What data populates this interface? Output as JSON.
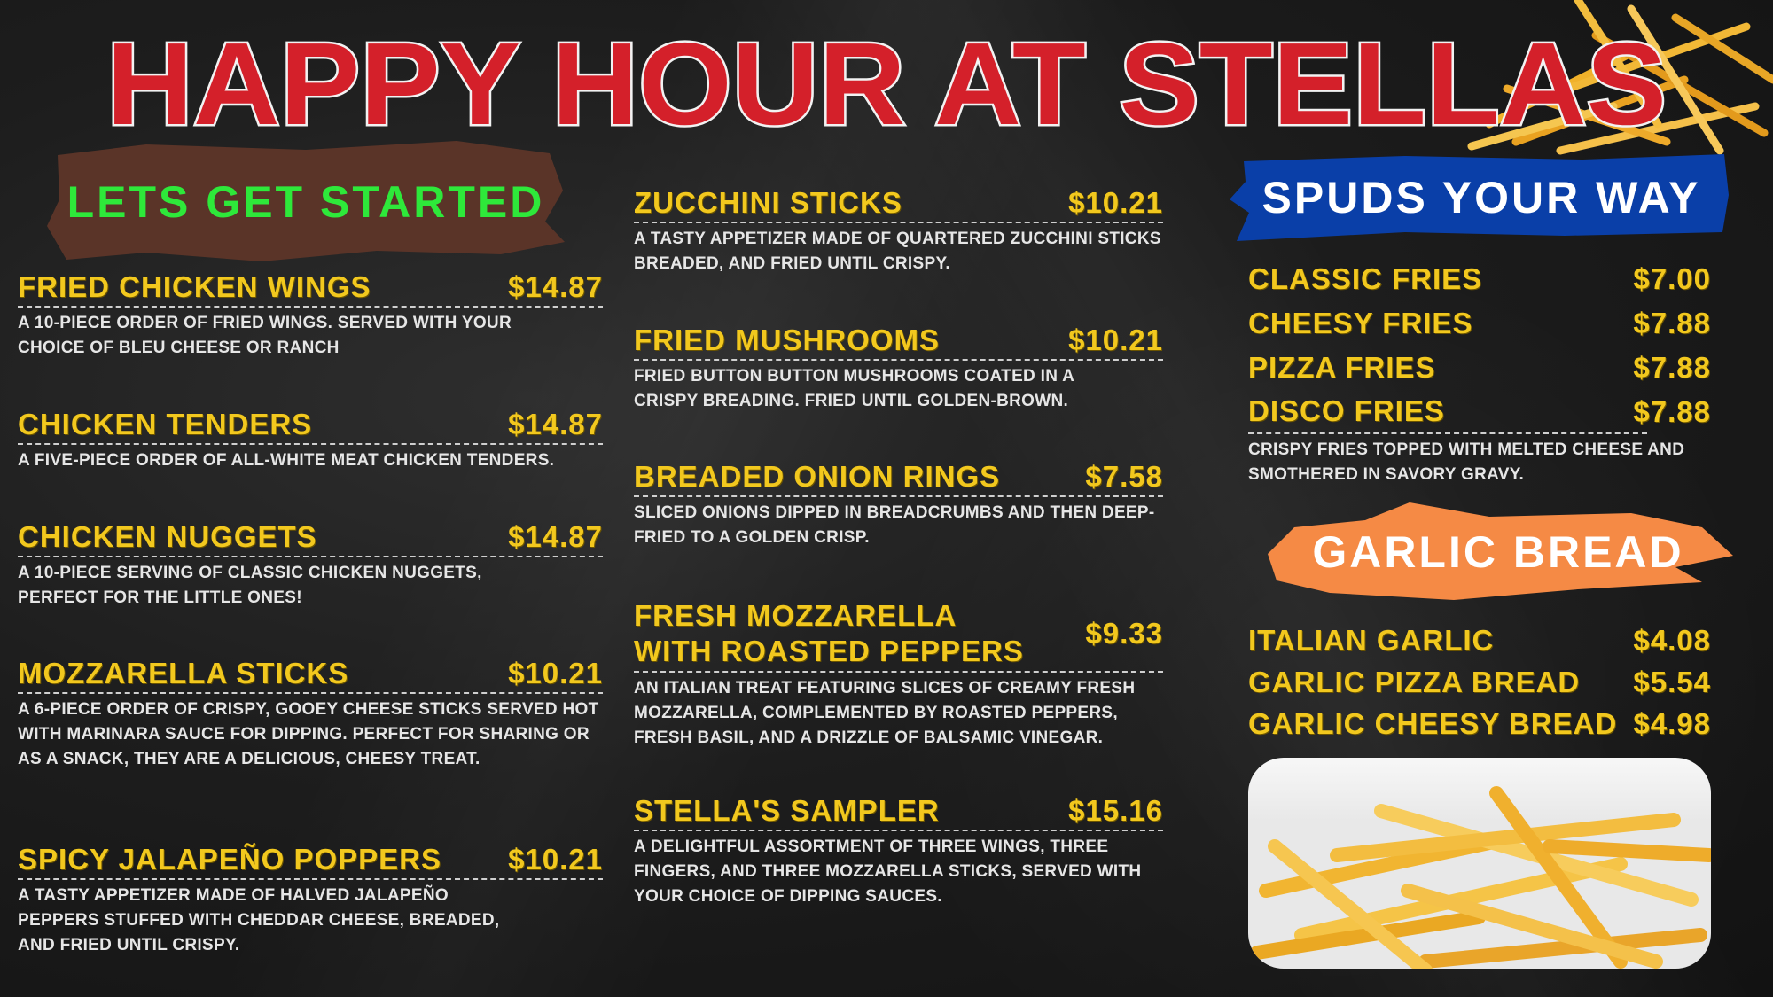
{
  "title": "HAPPY HOUR AT STELLAS",
  "colors": {
    "title": "#d4202a",
    "item": "#f2c81e",
    "desc": "#e6e6e6",
    "starters_banner": "#5a3428",
    "starters_text": "#2ee83a",
    "spuds_banner": "#0a3fa8",
    "garlic_banner": "#f58a45"
  },
  "starters": {
    "heading": "LETS GET STARTED",
    "items": [
      {
        "name": "FRIED CHICKEN WINGS",
        "price": "$14.87",
        "desc": "A 10-PIECE ORDER OF FRIED WINGS. SERVED WITH YOUR CHOICE OF BLEU CHEESE OR RANCH"
      },
      {
        "name": "CHICKEN TENDERS",
        "price": "$14.87",
        "desc": "A FIVE-PIECE ORDER OF ALL-WHITE MEAT CHICKEN TENDERS."
      },
      {
        "name": "CHICKEN NUGGETS",
        "price": "$14.87",
        "desc": "A 10-PIECE SERVING OF CLASSIC CHICKEN NUGGETS, PERFECT FOR THE LITTLE ONES!"
      },
      {
        "name": "MOZZARELLA STICKS",
        "price": "$10.21",
        "desc": "A 6-PIECE ORDER OF  CRISPY, GOOEY CHEESE STICKS SERVED HOT WITH MARINARA SAUCE FOR DIPPING. PERFECT FOR SHARING OR AS A SNACK, THEY ARE A DELICIOUS, CHEESY TREAT."
      },
      {
        "name": "SPICY JALAPEÑO POPPERS",
        "price": "$10.21",
        "desc": "A TASTY APPETIZER MADE OF HALVED JALAPEÑO PEPPERS STUFFED WITH CHEDDAR CHEESE, BREADED, AND FRIED UNTIL CRISPY."
      }
    ]
  },
  "middle": {
    "items": [
      {
        "name": "ZUCCHINI STICKS",
        "price": "$10.21",
        "desc": "A TASTY APPETIZER MADE OF QUARTERED ZUCCHINI STICKS  BREADED, AND FRIED UNTIL CRISPY."
      },
      {
        "name": "FRIED MUSHROOMS",
        "price": "$10.21",
        "desc": "FRIED BUTTON BUTTON MUSHROOMS COATED IN A CRISPY BREADING. FRIED UNTIL GOLDEN-BROWN."
      },
      {
        "name": "BREADED ONION RINGS",
        "price": "$7.58",
        "desc": "SLICED ONIONS DIPPED IN  BREADCRUMBS AND THEN DEEP-FRIED TO A GOLDEN CRISP."
      },
      {
        "name": "FRESH MOZZARELLA WITH ROASTED PEPPERS",
        "price": "$9.33",
        "desc": "AN ITALIAN TREAT FEATURING SLICES OF CREAMY FRESH MOZZARELLA, COMPLEMENTED BY ROASTED PEPPERS, FRESH BASIL, AND A DRIZZLE OF BALSAMIC VINEGAR."
      },
      {
        "name": "STELLA'S SAMPLER",
        "price": "$15.16",
        "desc": "A DELIGHTFUL ASSORTMENT OF THREE WINGS, THREE FINGERS, AND THREE MOZZARELLA STICKS, SERVED WITH YOUR CHOICE OF DIPPING SAUCES."
      }
    ]
  },
  "spuds": {
    "heading": "SPUDS YOUR WAY",
    "items": [
      {
        "name": "CLASSIC FRIES",
        "price": "$7.00"
      },
      {
        "name": "CHEESY FRIES",
        "price": "$7.88"
      },
      {
        "name": "PIZZA FRIES",
        "price": "$7.88"
      },
      {
        "name": "DISCO FRIES",
        "price": "$7.88"
      }
    ],
    "desc": "CRISPY FRIES TOPPED WITH MELTED CHEESE AND SMOTHERED IN SAVORY GRAVY."
  },
  "garlic": {
    "heading": "GARLIC BREAD",
    "items": [
      {
        "name": "ITALIAN GARLIC",
        "price": "$4.08"
      },
      {
        "name": "GARLIC PIZZA BREAD",
        "price": "$5.54"
      },
      {
        "name": "GARLIC CHEESY BREAD",
        "price": "$4.98"
      }
    ]
  }
}
